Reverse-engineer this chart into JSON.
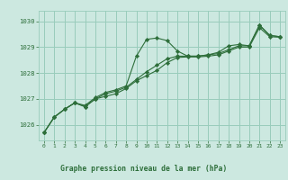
{
  "title": "Graphe pression niveau de la mer (hPa)",
  "bg_color": "#cce8e0",
  "grid_color": "#99ccbb",
  "line_color": "#2d6e3a",
  "label_bg": "#2d6e3a",
  "ylim": [
    1025.4,
    1030.4
  ],
  "yticks": [
    1026,
    1027,
    1028,
    1029,
    1030
  ],
  "xlim": [
    -0.5,
    23.5
  ],
  "xticks": [
    0,
    1,
    2,
    3,
    4,
    5,
    6,
    7,
    8,
    9,
    10,
    11,
    12,
    13,
    14,
    15,
    16,
    17,
    18,
    19,
    20,
    21,
    22,
    23
  ],
  "line1": [
    1025.7,
    1026.3,
    1026.6,
    1026.85,
    1026.75,
    1027.05,
    1027.25,
    1027.35,
    1027.5,
    1028.65,
    1029.3,
    1029.35,
    1029.25,
    1028.85,
    1028.65,
    1028.65,
    1028.7,
    1028.8,
    1029.05,
    1029.1,
    1029.05,
    1029.85,
    1029.45,
    1029.4
  ],
  "line2": [
    1025.7,
    1026.3,
    1026.6,
    1026.85,
    1026.7,
    1027.0,
    1027.2,
    1027.3,
    1027.45,
    1027.75,
    1028.05,
    1028.3,
    1028.55,
    1028.65,
    1028.65,
    1028.65,
    1028.7,
    1028.75,
    1028.9,
    1029.05,
    1029.05,
    1029.85,
    1029.45,
    1029.4
  ],
  "line3": [
    1025.7,
    1026.3,
    1026.6,
    1026.85,
    1026.7,
    1027.0,
    1027.1,
    1027.2,
    1027.4,
    1027.7,
    1027.9,
    1028.1,
    1028.4,
    1028.6,
    1028.62,
    1028.62,
    1028.65,
    1028.7,
    1028.85,
    1029.0,
    1029.0,
    1029.75,
    1029.4,
    1029.38
  ]
}
